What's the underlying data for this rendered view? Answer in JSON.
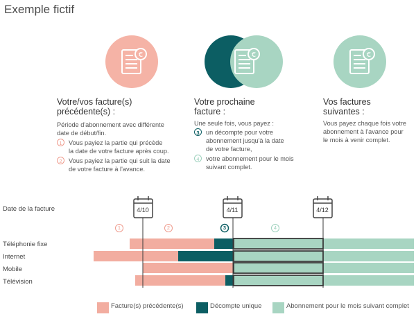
{
  "title": "Exemple fictif",
  "columns": [
    {
      "title_line1": "Votre/vos facture(s)",
      "title_line2": "précédente(s) :",
      "intro_line1": "Période d'abonnement avec différente",
      "intro_line2": "date de début/fin.",
      "items": [
        {
          "num": "1",
          "line1": "Vous payiez la partie qui précède",
          "line2": "la date de votre facture après coup."
        },
        {
          "num": "2",
          "line1": "Vous payiez la partie qui suit la date",
          "line2": "de votre facture à l'avance."
        }
      ]
    },
    {
      "title_line1": "Votre prochaine",
      "title_line2": "facture :",
      "intro_line1": "Une seule fois, vous payez :",
      "items": [
        {
          "num": "3",
          "line1": "un décompte pour votre",
          "line2": "abonnement jusqu'à la date",
          "line3": "de votre facture,"
        },
        {
          "num": "4",
          "line1": "votre abonnement pour le mois",
          "line2": "suivant complet."
        }
      ]
    },
    {
      "title_line1": "Vos factures",
      "title_line2": "suivantes :",
      "text_line1": "Vous payez chaque fois votre",
      "text_line2": "abonnement à l'avance pour",
      "text_line3": "le mois à venir complet."
    }
  ],
  "timeline": {
    "date_label": "Date de la facture",
    "dates": [
      "4/10",
      "4/11",
      "4/12"
    ],
    "phase_numbers": [
      "1",
      "2",
      "3",
      "4"
    ],
    "rows": [
      "Téléphonie fixe",
      "Internet",
      "Mobile",
      "Télévision"
    ]
  },
  "legend": [
    "Facture(s) précédente(s)",
    "Décompte unique",
    "Abonnement pour le mois suivant complet"
  ],
  "colors": {
    "salmon": "#f2ada0",
    "teal": "#0c5e63",
    "mint": "#a8d5c2",
    "circle_salmon": "#f5b3a6",
    "circle_mint": "#a8d5c2"
  }
}
